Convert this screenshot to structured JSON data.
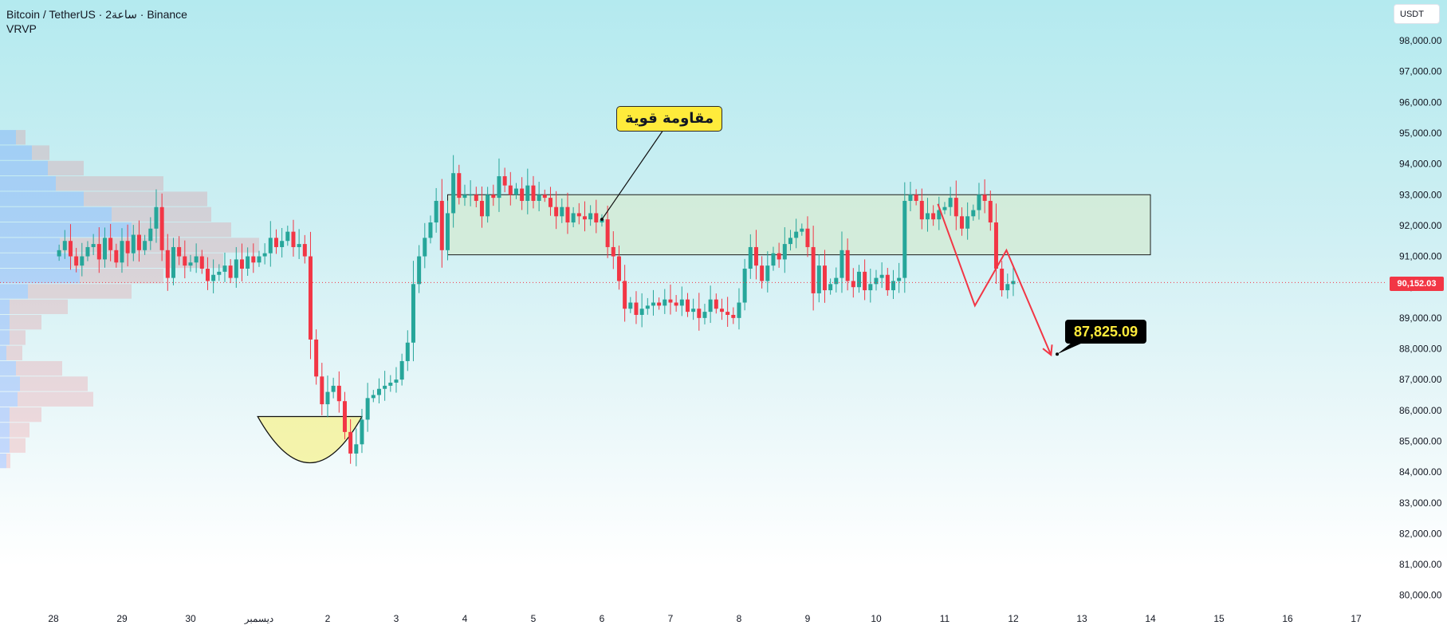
{
  "header": {
    "symbol_line": "Bitcoin / TetherUS · 2ساعة · Binance",
    "indicator": "VRVP"
  },
  "price_axis": {
    "currency": "USDT",
    "last_price": "90,152.03"
  },
  "annotations": {
    "resistance_label": "مقاومة قوية",
    "target_label": "87,825.09"
  },
  "colors": {
    "up": "#26a69a",
    "down": "#f23645",
    "zone_fill": "#d4ebd6",
    "cup_fill": "#f5f29c",
    "projection": "#f23645",
    "callout_bg": "#ffeb3b"
  },
  "chart_data": {
    "type": "candlestick",
    "timeframe": "2h",
    "y_axis": {
      "min": 80000,
      "max": 98000,
      "step": 1000,
      "tick_labels": [
        "98,000.00",
        "97,000.00",
        "96,000.00",
        "95,000.00",
        "94,000.00",
        "93,000.00",
        "92,000.00",
        "91,000.00",
        "90,000.00",
        "89,000.00",
        "88,000.00",
        "87,000.00",
        "86,000.00",
        "85,000.00",
        "84,000.00",
        "83,000.00",
        "82,000.00",
        "81,000.00",
        "80,000.00"
      ]
    },
    "x_axis": {
      "ticks": [
        {
          "label": "28",
          "day": -3
        },
        {
          "label": "29",
          "day": -2
        },
        {
          "label": "30",
          "day": -1
        },
        {
          "label": "ديسمبر",
          "day": 0
        },
        {
          "label": "2",
          "day": 1
        },
        {
          "label": "3",
          "day": 2
        },
        {
          "label": "4",
          "day": 3
        },
        {
          "label": "5",
          "day": 4
        },
        {
          "label": "6",
          "day": 5
        },
        {
          "label": "7",
          "day": 6
        },
        {
          "label": "8",
          "day": 7
        },
        {
          "label": "9",
          "day": 8
        },
        {
          "label": "10",
          "day": 9
        },
        {
          "label": "11",
          "day": 10
        },
        {
          "label": "12",
          "day": 11
        },
        {
          "label": "13",
          "day": 12
        },
        {
          "label": "14",
          "day": 13
        },
        {
          "label": "15",
          "day": 14
        },
        {
          "label": "16",
          "day": 15
        },
        {
          "label": "17",
          "day": 16
        }
      ]
    },
    "closes": [
      91200,
      91500,
      91000,
      90700,
      91000,
      91300,
      91400,
      90900,
      91600,
      91200,
      90800,
      91500,
      91100,
      91700,
      91200,
      91500,
      91900,
      92600,
      91200,
      90300,
      91300,
      91000,
      90700,
      90800,
      91000,
      90600,
      90200,
      90400,
      90500,
      90700,
      90300,
      90900,
      90600,
      91000,
      90800,
      91000,
      91100,
      91600,
      91300,
      91500,
      91800,
      91300,
      91400,
      91000,
      88300,
      87100,
      86200,
      86600,
      86800,
      86300,
      85300,
      84600,
      84900,
      85700,
      86400,
      86500,
      86700,
      86800,
      86900,
      87000,
      87600,
      88200,
      90100,
      91000,
      91600,
      92100,
      92800,
      91200,
      92400,
      93700,
      92900,
      93000,
      93000,
      92800,
      92300,
      93000,
      92900,
      93600,
      93300,
      93000,
      93200,
      92800,
      93300,
      92800,
      93000,
      92900,
      92600,
      92300,
      92600,
      92100,
      92400,
      92300,
      92200,
      92400,
      92100,
      92200,
      91300,
      91000,
      90200,
      89300,
      89500,
      89100,
      89300,
      89400,
      89500,
      89400,
      89600,
      89500,
      89400,
      89600,
      89200,
      89300,
      89000,
      89200,
      89600,
      89300,
      89200,
      89100,
      89000,
      89500,
      90600,
      91300,
      90700,
      90200,
      90700,
      91100,
      90900,
      91400,
      91600,
      91800,
      91900,
      91300,
      89800,
      90700,
      89900,
      90100,
      90300,
      91200,
      90200,
      90000,
      90500,
      89900,
      90100,
      90300,
      90400,
      89900,
      90200,
      90300,
      92800,
      93000,
      92800,
      92200,
      92400,
      92200,
      92500,
      92600,
      92900,
      92300,
      91900,
      92300,
      92500,
      93000,
      92800,
      92100,
      90600,
      89900,
      90100,
      90200
    ],
    "zone": {
      "top": 93000,
      "bottom": 91050,
      "start_day": 2.75,
      "end_day": 13.0
    },
    "cup": {
      "start_day": -0.02,
      "end_day": 1.5,
      "top": 85800,
      "bottom": 84300
    },
    "projection": [
      {
        "day": 9.9,
        "price": 92700
      },
      {
        "day": 10.44,
        "price": 89400
      },
      {
        "day": 10.9,
        "price": 91200
      },
      {
        "day": 11.55,
        "price": 87800
      }
    ],
    "target": {
      "day": 11.64,
      "price": 87825.09
    },
    "volume_profile": [
      {
        "price": 94850,
        "up": 20,
        "down": 12
      },
      {
        "price": 94350,
        "up": 40,
        "down": 22
      },
      {
        "price": 93850,
        "up": 60,
        "down": 45
      },
      {
        "price": 93350,
        "up": 70,
        "down": 135
      },
      {
        "price": 92850,
        "up": 105,
        "down": 155
      },
      {
        "price": 92350,
        "up": 140,
        "down": 125
      },
      {
        "price": 91850,
        "up": 165,
        "down": 125
      },
      {
        "price": 91350,
        "up": 75,
        "down": 250
      },
      {
        "price": 90850,
        "up": 90,
        "down": 190
      },
      {
        "price": 90350,
        "up": 100,
        "down": 105
      },
      {
        "price": 89850,
        "up": 35,
        "down": 130
      },
      {
        "price": 89350,
        "up": 12,
        "down": 73
      },
      {
        "price": 88850,
        "up": 12,
        "down": 40
      },
      {
        "price": 88350,
        "up": 12,
        "down": 20
      },
      {
        "price": 87850,
        "up": 8,
        "down": 20
      },
      {
        "price": 87350,
        "up": 20,
        "down": 58
      },
      {
        "price": 86850,
        "up": 25,
        "down": 85
      },
      {
        "price": 86350,
        "up": 22,
        "down": 95
      },
      {
        "price": 85850,
        "up": 12,
        "down": 40
      },
      {
        "price": 85350,
        "up": 12,
        "down": 25
      },
      {
        "price": 84850,
        "up": 12,
        "down": 20
      },
      {
        "price": 84350,
        "up": 8,
        "down": 5
      }
    ]
  }
}
